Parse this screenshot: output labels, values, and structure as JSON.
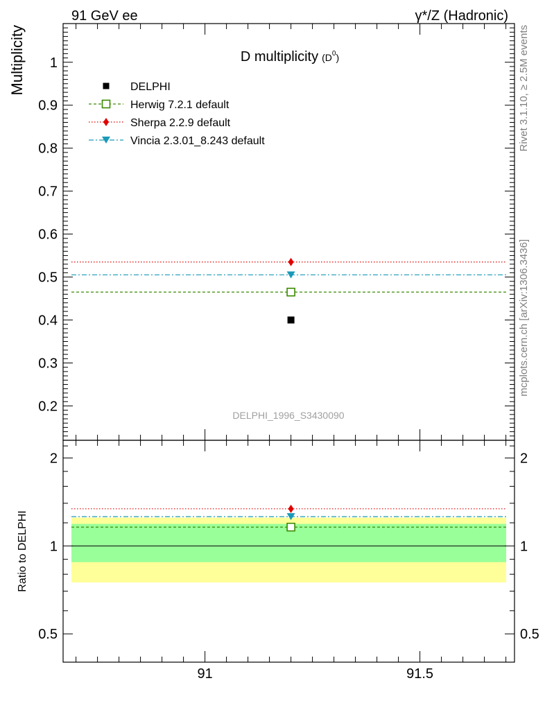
{
  "header": {
    "left": "91 GeV ee",
    "right": "γ*/Z (Hadronic)"
  },
  "side_labels": {
    "rivet": "Rivet 3.1.10, ≥ 2.5M events",
    "mcplots": "mcplots.cern.ch [arXiv:1306.3436]"
  },
  "chart_data": [
    {
      "type": "scatter",
      "panel": "main",
      "title": "D multiplicity",
      "title_sub": "(D",
      "title_sup": "0",
      "title_end": ")",
      "ylabel": "Multiplicity",
      "watermark": "DELPHI_1996_S3430090",
      "xlim": [
        90.67,
        91.72
      ],
      "ylim": [
        0.12,
        1.09
      ],
      "y_ticks": [
        0.2,
        0.3,
        0.4,
        0.5,
        0.6,
        0.7,
        0.8,
        0.9,
        1.0
      ],
      "y_tick_labels": [
        "0.2",
        "0.3",
        "0.4",
        "0.5",
        "0.6",
        "0.7",
        "0.8",
        "0.9",
        "1"
      ],
      "data": {
        "name": "DELPHI",
        "x": 91.2,
        "y": 0.4,
        "color": "#000000"
      },
      "series": [
        {
          "name": "Herwig 7.2.1 default",
          "y": 0.465,
          "color": "#3a8a00",
          "marker": "open-square",
          "dash": "4,3"
        },
        {
          "name": "Sherpa 2.2.9 default",
          "y": 0.535,
          "color": "#e00000",
          "marker": "diamond",
          "dash": "1.5,2.5"
        },
        {
          "name": "Vincia 2.3.01_8.243 default",
          "y": 0.505,
          "color": "#1a9ab8",
          "marker": "triangle-down",
          "dash": "7,3,2,3"
        }
      ],
      "legend_position": "top-left"
    },
    {
      "type": "scatter",
      "panel": "ratio",
      "ylabel": "Ratio to DELPHI",
      "xlim": [
        90.67,
        91.72
      ],
      "ylim": [
        0.4,
        2.3
      ],
      "x_ticks": [
        91,
        91.5
      ],
      "x_tick_labels": [
        "91",
        "91.5"
      ],
      "y_ticks": [
        0.5,
        1,
        2
      ],
      "y_tick_labels": [
        "0.5",
        "1",
        "2"
      ],
      "band_outer": [
        0.75,
        1.25
      ],
      "band_inner": [
        0.88,
        1.19
      ],
      "band_outer_color": "#ffff99",
      "band_inner_color": "#99ff99",
      "reference": 1,
      "series": [
        {
          "name": "Herwig 7.2.1 default",
          "y": 1.16,
          "color": "#3a8a00"
        },
        {
          "name": "Sherpa 2.2.9 default",
          "y": 1.34,
          "color": "#e00000"
        },
        {
          "name": "Vincia 2.3.01_8.243 default",
          "y": 1.26,
          "color": "#1a9ab8"
        }
      ]
    }
  ]
}
